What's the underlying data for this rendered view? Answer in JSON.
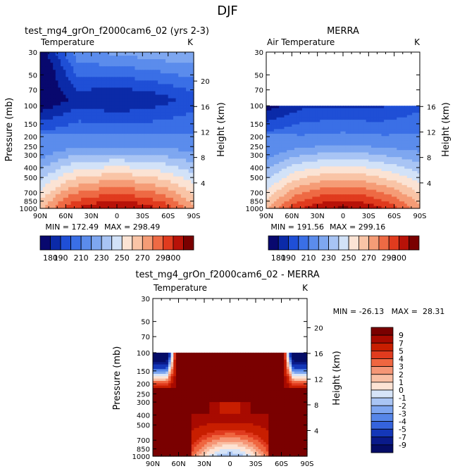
{
  "figure_title": "DJF",
  "chart_data": [
    {
      "type": "heatmap",
      "title": "test_mg4_grOn_f2000cam6_02 (yrs 2-3)",
      "left_label": "Temperature",
      "right_label": "K",
      "ylabel": "Pressure (mb)",
      "ylabel_right": "Height (km)",
      "x_ticks": [
        "90N",
        "60N",
        "30N",
        "0",
        "30S",
        "60S",
        "90S"
      ],
      "y_ticks": [
        30,
        50,
        70,
        100,
        150,
        200,
        250,
        300,
        400,
        500,
        700,
        850,
        1000
      ],
      "height_ticks": [
        4,
        8,
        12,
        16,
        20
      ],
      "ylim": [
        30,
        1000
      ],
      "min_label": "MIN = 172.49",
      "max_label": "MAX = 298.49",
      "colorbar_labels": [
        "180",
        "190",
        "210",
        "230",
        "250",
        "270",
        "290",
        "300"
      ],
      "colorbar_levels": [
        180,
        190,
        200,
        210,
        220,
        230,
        240,
        250,
        260,
        270,
        280,
        290,
        300
      ],
      "data_top_mb": 30
    },
    {
      "type": "heatmap",
      "title": "MERRA",
      "left_label": "Air Temperature",
      "right_label": "K",
      "ylabel": "Pressure (mb)",
      "ylabel_right": "Height (km)",
      "x_ticks": [
        "90N",
        "60N",
        "30N",
        "0",
        "30S",
        "60S",
        "90S"
      ],
      "y_ticks": [
        30,
        50,
        70,
        100,
        150,
        200,
        250,
        300,
        400,
        500,
        700,
        850,
        1000
      ],
      "height_ticks": [
        4,
        8,
        12,
        16
      ],
      "ylim": [
        30,
        1000
      ],
      "min_label": "MIN = 191.56",
      "max_label": "MAX = 299.16",
      "colorbar_labels": [
        "180",
        "190",
        "210",
        "230",
        "250",
        "270",
        "290",
        "300"
      ],
      "colorbar_levels": [
        180,
        190,
        200,
        210,
        220,
        230,
        240,
        250,
        260,
        270,
        280,
        290,
        300
      ],
      "data_top_mb": 100
    },
    {
      "type": "heatmap",
      "title": "test_mg4_grOn_f2000cam6_02 - MERRA",
      "left_label": "Temperature",
      "right_label": "K",
      "ylabel": "Pressure (mb)",
      "ylabel_right": "Height (km)",
      "x_ticks": [
        "90N",
        "60N",
        "30N",
        "0",
        "30S",
        "60S",
        "90S"
      ],
      "y_ticks": [
        30,
        50,
        70,
        100,
        150,
        200,
        250,
        300,
        400,
        500,
        700,
        850,
        1000
      ],
      "height_ticks": [
        4,
        8,
        12,
        16,
        20
      ],
      "ylim": [
        30,
        1000
      ],
      "min_max_label": "MIN = -26.13   MAX =  28.31",
      "colorbar_labels": [
        "9",
        "7",
        "5",
        "4",
        "3",
        "2",
        "1",
        "0",
        "-1",
        "-2",
        "-3",
        "-4",
        "-5",
        "-7",
        "-9"
      ],
      "colorbar_levels": [
        -9,
        -7,
        -5,
        -4,
        -3,
        -2,
        -1,
        0,
        1,
        2,
        3,
        4,
        5,
        7,
        9
      ],
      "data_top_mb": 100
    }
  ],
  "palettes": {
    "temperature": [
      "#08086e",
      "#0b2aa8",
      "#1f4fd6",
      "#3a6fe6",
      "#5b8cec",
      "#7ea7f0",
      "#a8c4f4",
      "#d2e2f8",
      "#fbe3d4",
      "#f9c4a6",
      "#f59c76",
      "#ee6a44",
      "#e03b1e",
      "#b81208",
      "#7a0000"
    ],
    "difference": [
      "#7a0000",
      "#a80a00",
      "#c81e00",
      "#e03b1e",
      "#ef6640",
      "#f59676",
      "#f9bfa4",
      "#fde3d4",
      "#d6e4f8",
      "#a9c5f4",
      "#7ea6f0",
      "#5686e8",
      "#3563dc",
      "#1437b8",
      "#0a1a8a",
      "#050c66"
    ]
  }
}
